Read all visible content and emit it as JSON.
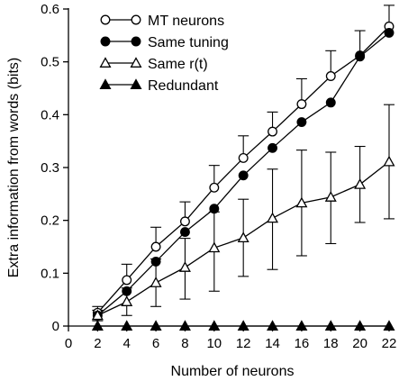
{
  "chart_data": {
    "type": "line",
    "xlabel": "Number of neurons",
    "ylabel": "Extra information from words (bits)",
    "xlim": [
      0,
      22
    ],
    "ylim": [
      0,
      0.6
    ],
    "xticks": [
      0,
      2,
      4,
      6,
      8,
      10,
      12,
      14,
      16,
      18,
      20,
      22
    ],
    "yticks": [
      0,
      0.1,
      0.2,
      0.3,
      0.4,
      0.5,
      0.6
    ],
    "ytick_labels": [
      "0",
      "0.1",
      "0.2",
      "0.3",
      "0.4",
      "0.5",
      "0.6"
    ],
    "grid": false,
    "legend_position": "top-left",
    "x": [
      2,
      4,
      6,
      8,
      10,
      12,
      14,
      16,
      18,
      20,
      22
    ],
    "series": [
      {
        "name": "MT neurons",
        "marker": "circle-open",
        "values": [
          0.025,
          0.087,
          0.15,
          0.198,
          0.262,
          0.318,
          0.368,
          0.42,
          0.473,
          0.512,
          0.567
        ],
        "error_up": [
          0.012,
          0.03,
          0.037,
          0.037,
          0.042,
          0.042,
          0.037,
          0.048,
          0.048,
          0.047,
          0.04
        ]
      },
      {
        "name": "Same tuning",
        "marker": "circle-filled",
        "values": [
          0.02,
          0.066,
          0.122,
          0.178,
          0.222,
          0.285,
          0.337,
          0.386,
          0.423,
          0.51,
          0.555
        ],
        "error_up": [
          0,
          0,
          0,
          0,
          0,
          0,
          0,
          0,
          0,
          0,
          0
        ]
      },
      {
        "name": "Same r(t)",
        "marker": "triangle-open",
        "values": [
          0.02,
          0.046,
          0.082,
          0.111,
          0.148,
          0.167,
          0.204,
          0.233,
          0.244,
          0.268,
          0.311
        ],
        "error_up": [
          0.01,
          0.026,
          0.045,
          0.055,
          0.068,
          0.073,
          0.093,
          0.1,
          0.085,
          0.072,
          0.108
        ],
        "error_down": [
          0.01,
          0.026,
          0.045,
          0.06,
          0.082,
          0.073,
          0.097,
          0.1,
          0.088,
          0.072,
          0.108
        ]
      },
      {
        "name": "Redundant",
        "marker": "triangle-filled",
        "values": [
          0,
          0,
          0,
          0,
          0,
          0,
          0,
          0,
          0,
          0,
          0
        ]
      }
    ]
  }
}
